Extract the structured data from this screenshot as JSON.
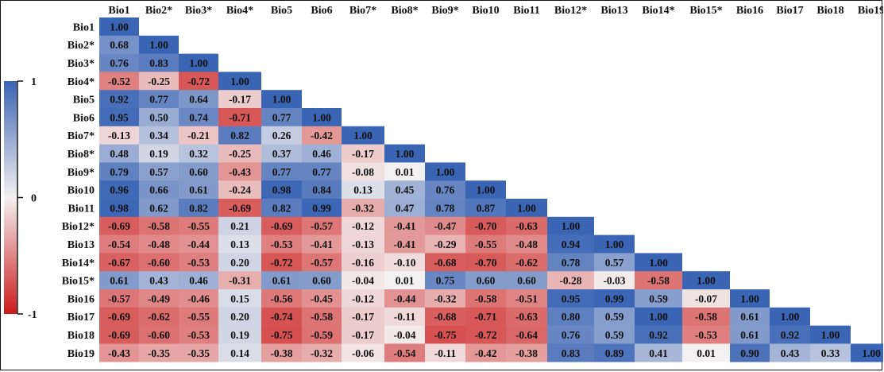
{
  "chart_data": {
    "type": "heatmap",
    "title": "",
    "xlabel": "",
    "ylabel": "",
    "variables": [
      "Bio1",
      "Bio2*",
      "Bio3*",
      "Bio4*",
      "Bio5",
      "Bio6",
      "Bio7*",
      "Bio8*",
      "Bio9*",
      "Bio10",
      "Bio11",
      "Bio12*",
      "Bio13",
      "Bio14*",
      "Bio15*",
      "Bio16",
      "Bio17",
      "Bio18",
      "Bio19"
    ],
    "values": [
      [
        1.0
      ],
      [
        0.68,
        1.0
      ],
      [
        0.76,
        0.83,
        1.0
      ],
      [
        -0.52,
        -0.25,
        -0.72,
        1.0
      ],
      [
        0.92,
        0.77,
        0.64,
        -0.17,
        1.0
      ],
      [
        0.95,
        0.5,
        0.74,
        -0.71,
        0.77,
        1.0
      ],
      [
        -0.13,
        0.34,
        -0.21,
        0.82,
        0.26,
        -0.42,
        1.0
      ],
      [
        0.48,
        0.19,
        0.32,
        -0.25,
        0.37,
        0.46,
        -0.17,
        1.0
      ],
      [
        0.79,
        0.57,
        0.6,
        -0.43,
        0.77,
        0.77,
        -0.08,
        0.01,
        1.0
      ],
      [
        0.96,
        0.66,
        0.61,
        -0.24,
        0.98,
        0.84,
        0.13,
        0.45,
        0.76,
        1.0
      ],
      [
        0.98,
        0.62,
        0.82,
        -0.69,
        0.82,
        0.99,
        -0.32,
        0.47,
        0.78,
        0.87,
        1.0
      ],
      [
        -0.69,
        -0.58,
        -0.55,
        0.21,
        -0.69,
        -0.57,
        -0.12,
        -0.41,
        -0.47,
        -0.7,
        -0.63,
        1.0
      ],
      [
        -0.54,
        -0.48,
        -0.44,
        0.13,
        -0.53,
        -0.41,
        -0.13,
        -0.41,
        -0.29,
        -0.55,
        -0.48,
        0.94,
        1.0
      ],
      [
        -0.67,
        -0.6,
        -0.53,
        0.2,
        -0.72,
        -0.57,
        -0.16,
        -0.1,
        -0.68,
        -0.7,
        -0.62,
        0.78,
        0.57,
        1.0
      ],
      [
        0.61,
        0.43,
        0.46,
        -0.31,
        0.61,
        0.6,
        -0.04,
        0.01,
        0.75,
        0.6,
        0.6,
        -0.28,
        -0.03,
        -0.58,
        1.0
      ],
      [
        -0.57,
        -0.49,
        -0.46,
        0.15,
        -0.56,
        -0.45,
        -0.12,
        -0.44,
        -0.32,
        -0.58,
        -0.51,
        0.95,
        0.99,
        0.59,
        -0.07,
        1.0
      ],
      [
        -0.69,
        -0.62,
        -0.55,
        0.2,
        -0.74,
        -0.58,
        -0.17,
        -0.11,
        -0.68,
        -0.71,
        -0.63,
        0.8,
        0.59,
        1.0,
        -0.58,
        0.61,
        1.0
      ],
      [
        -0.69,
        -0.6,
        -0.53,
        0.19,
        -0.75,
        -0.59,
        -0.17,
        -0.04,
        -0.75,
        -0.72,
        -0.64,
        0.76,
        0.59,
        0.92,
        -0.53,
        0.61,
        0.92,
        1.0
      ],
      [
        -0.43,
        -0.35,
        -0.35,
        0.14,
        -0.38,
        -0.32,
        -0.06,
        -0.54,
        -0.11,
        -0.42,
        -0.38,
        0.83,
        0.89,
        0.41,
        0.01,
        0.9,
        0.43,
        0.33,
        1.0
      ]
    ],
    "colorbar": {
      "ticks": [
        "1",
        "0",
        "-1"
      ],
      "range": [
        -1,
        1
      ],
      "colors": {
        "positive": "#3a64b4",
        "zero": "#f4f1f1",
        "negative": "#cc1a1a"
      }
    },
    "legend_position": "left",
    "grid": false
  }
}
